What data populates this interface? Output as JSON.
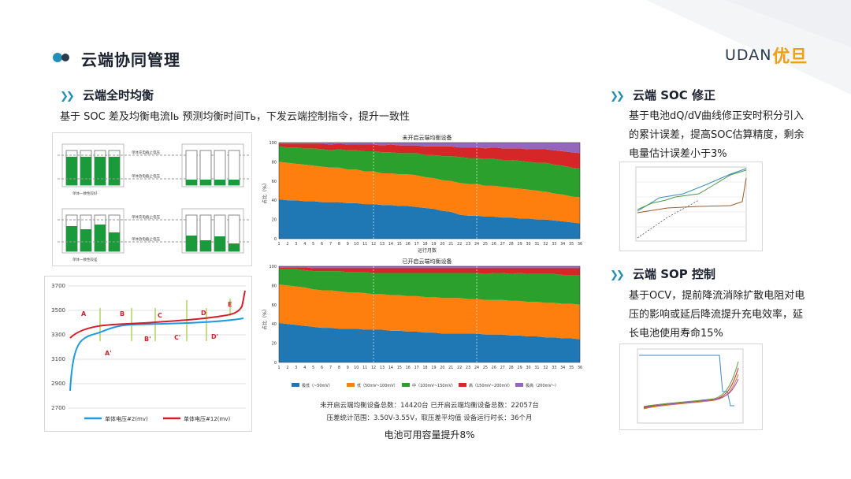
{
  "page_title": "云端协同管理",
  "logo": {
    "latin": "UDAN",
    "cn": "优旦"
  },
  "left_section": {
    "title": "云端全时均衡",
    "description": "基于 SOC 差及均衡电流Iь 预测均衡时间Tь，下发云端控制指令，提升一致性",
    "cell_diagram_labels": {
      "charge_cutoff": "单体充电截止电压",
      "discharge_cutoff": "单体放电截止电压",
      "consistency_good": "单体一致性较好",
      "consistency_poor": "单体一致性较差"
    },
    "voltage_chart": {
      "y_ticks": [
        "3700",
        "3500",
        "3300",
        "3100",
        "2900",
        "2700"
      ],
      "annotations": [
        "A",
        "B",
        "C",
        "D",
        "E",
        "A'",
        "B'",
        "C'",
        "D'"
      ],
      "legend": [
        "单体电压#2(mv)",
        "单体电压#12(mv)"
      ],
      "colors": {
        "series1": "#1f9ae0",
        "series2": "#d0202a"
      }
    }
  },
  "middle_section": {
    "chart_top_title": "未开启云端均衡设备",
    "chart_bottom_title": "已开启云端均衡设备",
    "y_label": "占比（%）",
    "x_label": "运行月数",
    "legend": [
      "极低（~50mV）",
      "低（50mV~100mV）",
      "中（100mV~150mV）",
      "高（150mV~200mV）",
      "极高（200mV~）"
    ],
    "summary_line1": "未开启云端均衡设备总数：14420台   已开启云端均衡设备总数：22057台",
    "summary_line2": "压差统计范围：3.50V-3.55V，取压差平均值   设备运行时长：36个月",
    "conclusion": "电池可用容量提升8%"
  },
  "right_section": {
    "soc_title": "云端 SOC 修正",
    "soc_text": "基于电池dQ/dV曲线修正安时积分引入的累计误差，提高SOC估算精度，剩余电量估计误差小于3%",
    "sop_title": "云端 SOP 控制",
    "sop_text": "基于OCV，提前降流消除扩散电阻对电压的影响或延后降流提升充电效率，延长电池使用寿命15%"
  },
  "chart_data": [
    {
      "type": "area",
      "title": "未开启云端均衡设备",
      "xlabel": "运行月数",
      "ylabel": "占比（%）",
      "ylim": [
        0,
        100
      ],
      "x": [
        1,
        2,
        3,
        4,
        5,
        6,
        7,
        8,
        9,
        10,
        11,
        12,
        13,
        14,
        15,
        16,
        17,
        18,
        19,
        20,
        21,
        22,
        23,
        24,
        25,
        26,
        27,
        28,
        29,
        30,
        31,
        32,
        33,
        34,
        35,
        36
      ],
      "colors": [
        "#1f77b4",
        "#ff7f0e",
        "#2ca02c",
        "#d62728",
        "#9467bd"
      ],
      "series": [
        {
          "name": "极低（~50mV）",
          "values": [
            41,
            40,
            40,
            39,
            39,
            38,
            38,
            38,
            37,
            37,
            36,
            36,
            35,
            35,
            34,
            34,
            33,
            32,
            31,
            29,
            28,
            25,
            24,
            24,
            23,
            23,
            22,
            22,
            21,
            21,
            20,
            20,
            19,
            18,
            17,
            16
          ]
        },
        {
          "name": "低（50mV~100mV）",
          "values": [
            39,
            39,
            38,
            38,
            37,
            37,
            36,
            36,
            35,
            35,
            34,
            34,
            33,
            33,
            33,
            33,
            33,
            32,
            32,
            32,
            32,
            33,
            33,
            33,
            32,
            32,
            32,
            31,
            31,
            30,
            30,
            29,
            28,
            28,
            27,
            27
          ]
        },
        {
          "name": "中（100mV~150mV）",
          "values": [
            16,
            16,
            17,
            17,
            18,
            18,
            18,
            19,
            20,
            20,
            21,
            21,
            22,
            22,
            22,
            22,
            23,
            23,
            24,
            25,
            26,
            27,
            27,
            27,
            28,
            28,
            28,
            29,
            29,
            29,
            29,
            30,
            30,
            30,
            30,
            30
          ]
        },
        {
          "name": "高（150mV~200mV）",
          "values": [
            3,
            4,
            4,
            5,
            5,
            6,
            6,
            6,
            6,
            6,
            7,
            7,
            7,
            8,
            8,
            8,
            8,
            9,
            9,
            10,
            10,
            10,
            11,
            11,
            11,
            12,
            12,
            12,
            13,
            13,
            14,
            14,
            15,
            15,
            16,
            16
          ]
        },
        {
          "name": "极高（200mV~）",
          "values": [
            1,
            1,
            1,
            1,
            1,
            1,
            2,
            1,
            2,
            2,
            2,
            2,
            3,
            2,
            3,
            3,
            3,
            4,
            4,
            4,
            4,
            5,
            5,
            5,
            6,
            5,
            6,
            6,
            6,
            7,
            7,
            7,
            8,
            9,
            10,
            11
          ]
        }
      ]
    },
    {
      "type": "area",
      "title": "已开启云端均衡设备",
      "xlabel": "运行月数",
      "ylabel": "占比（%）",
      "ylim": [
        0,
        100
      ],
      "x": [
        1,
        2,
        3,
        4,
        5,
        6,
        7,
        8,
        9,
        10,
        11,
        12,
        13,
        14,
        15,
        16,
        17,
        18,
        19,
        20,
        21,
        22,
        23,
        24,
        25,
        26,
        27,
        28,
        29,
        30,
        31,
        32,
        33,
        34,
        35,
        36
      ],
      "colors": [
        "#1f77b4",
        "#ff7f0e",
        "#2ca02c",
        "#d62728",
        "#9467bd"
      ],
      "series": [
        {
          "name": "极低（~50mV）",
          "values": [
            41,
            40,
            39,
            38,
            37,
            36,
            36,
            35,
            35,
            35,
            34,
            34,
            34,
            33,
            33,
            32,
            32,
            31,
            31,
            30,
            30,
            30,
            30,
            30,
            29,
            29,
            29,
            28,
            28,
            27,
            27,
            26,
            26,
            25,
            25,
            24
          ]
        },
        {
          "name": "低（50mV~100mV）",
          "values": [
            40,
            40,
            40,
            40,
            39,
            39,
            39,
            39,
            38,
            38,
            38,
            37,
            37,
            37,
            37,
            37,
            37,
            37,
            37,
            37,
            37,
            37,
            36,
            36,
            36,
            36,
            36,
            36,
            36,
            36,
            36,
            36,
            36,
            36,
            36,
            36
          ]
        },
        {
          "name": "中（100mV~150mV）",
          "values": [
            16,
            17,
            18,
            18,
            19,
            20,
            20,
            21,
            21,
            21,
            22,
            22,
            22,
            23,
            23,
            24,
            24,
            25,
            25,
            26,
            26,
            26,
            27,
            27,
            27,
            28,
            28,
            28,
            29,
            29,
            29,
            30,
            30,
            30,
            30,
            31
          ]
        },
        {
          "name": "高（150mV~200mV）",
          "values": [
            2,
            2,
            2,
            3,
            3,
            3,
            3,
            3,
            4,
            4,
            4,
            5,
            5,
            5,
            5,
            5,
            5,
            5,
            5,
            5,
            5,
            5,
            5,
            5,
            6,
            5,
            5,
            6,
            5,
            6,
            6,
            6,
            6,
            7,
            7,
            7
          ]
        },
        {
          "name": "极高（200mV~）",
          "values": [
            1,
            1,
            1,
            1,
            2,
            2,
            2,
            2,
            2,
            2,
            2,
            2,
            2,
            2,
            2,
            2,
            2,
            2,
            2,
            2,
            2,
            2,
            2,
            2,
            2,
            2,
            2,
            2,
            2,
            2,
            2,
            2,
            2,
            2,
            2,
            2
          ]
        }
      ]
    }
  ]
}
